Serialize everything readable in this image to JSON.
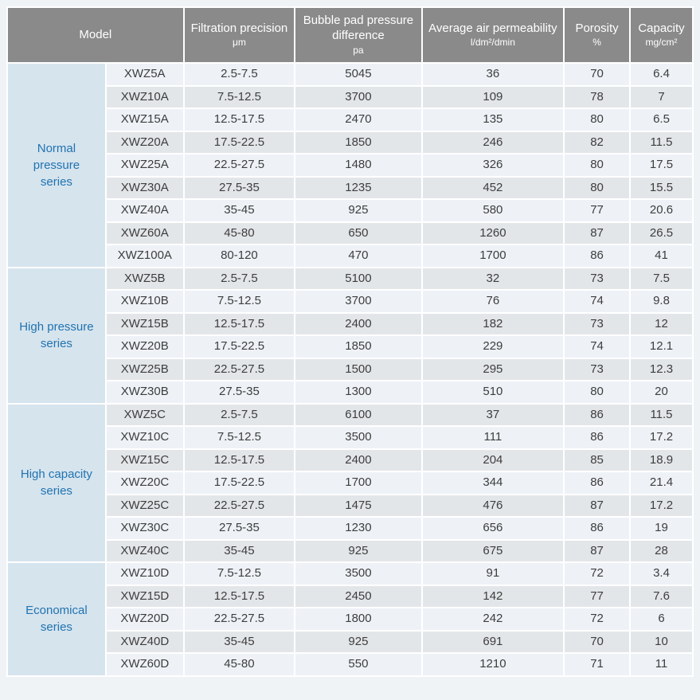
{
  "table": {
    "headers": [
      {
        "title": "Model",
        "unit": ""
      },
      {
        "title": "Filtration precision",
        "unit": "μm"
      },
      {
        "title": "Bubble pad pressure difference",
        "unit": "pa"
      },
      {
        "title": "Average air permeability",
        "unit": "l/dm²/dmin"
      },
      {
        "title": "Porosity",
        "unit": "%"
      },
      {
        "title": "Capacity",
        "unit": "mg/cm²"
      }
    ],
    "groups": [
      {
        "label": "Normal pressure series",
        "rows": [
          [
            "XWZ5A",
            "2.5-7.5",
            "5045",
            "36",
            "70",
            "6.4"
          ],
          [
            "XWZ10A",
            "7.5-12.5",
            "3700",
            "109",
            "78",
            "7"
          ],
          [
            "XWZ15A",
            "12.5-17.5",
            "2470",
            "135",
            "80",
            "6.5"
          ],
          [
            "XWZ20A",
            "17.5-22.5",
            "1850",
            "246",
            "82",
            "11.5"
          ],
          [
            "XWZ25A",
            "22.5-27.5",
            "1480",
            "326",
            "80",
            "17.5"
          ],
          [
            "XWZ30A",
            "27.5-35",
            "1235",
            "452",
            "80",
            "15.5"
          ],
          [
            "XWZ40A",
            "35-45",
            "925",
            "580",
            "77",
            "20.6"
          ],
          [
            "XWZ60A",
            "45-80",
            "650",
            "1260",
            "87",
            "26.5"
          ],
          [
            "XWZ100A",
            "80-120",
            "470",
            "1700",
            "86",
            "41"
          ]
        ]
      },
      {
        "label": "High pressure series",
        "rows": [
          [
            "XWZ5B",
            "2.5-7.5",
            "5100",
            "32",
            "73",
            "7.5"
          ],
          [
            "XWZ10B",
            "7.5-12.5",
            "3700",
            "76",
            "74",
            "9.8"
          ],
          [
            "XWZ15B",
            "12.5-17.5",
            "2400",
            "182",
            "73",
            "12"
          ],
          [
            "XWZ20B",
            "17.5-22.5",
            "1850",
            "229",
            "74",
            "12.1"
          ],
          [
            "XWZ25B",
            "22.5-27.5",
            "1500",
            "295",
            "73",
            "12.3"
          ],
          [
            "XWZ30B",
            "27.5-35",
            "1300",
            "510",
            "80",
            "20"
          ]
        ]
      },
      {
        "label": "High capacity series",
        "rows": [
          [
            "XWZ5C",
            "2.5-7.5",
            "6100",
            "37",
            "86",
            "11.5"
          ],
          [
            "XWZ10C",
            "7.5-12.5",
            "3500",
            "111",
            "86",
            "17.2"
          ],
          [
            "XWZ15C",
            "12.5-17.5",
            "2400",
            "204",
            "85",
            "18.9"
          ],
          [
            "XWZ20C",
            "17.5-22.5",
            "1700",
            "344",
            "86",
            "21.4"
          ],
          [
            "XWZ25C",
            "22.5-27.5",
            "1475",
            "476",
            "87",
            "17.2"
          ],
          [
            "XWZ30C",
            "27.5-35",
            "1230",
            "656",
            "86",
            "19"
          ],
          [
            "XWZ40C",
            "35-45",
            "925",
            "675",
            "87",
            "28"
          ]
        ]
      },
      {
        "label": "Economical series",
        "rows": [
          [
            "XWZ10D",
            "7.5-12.5",
            "3500",
            "91",
            "72",
            "3.4"
          ],
          [
            "XWZ15D",
            "12.5-17.5",
            "2450",
            "142",
            "77",
            "7.6"
          ],
          [
            "XWZ20D",
            "22.5-27.5",
            "1800",
            "242",
            "72",
            "6"
          ],
          [
            "XWZ40D",
            "35-45",
            "925",
            "691",
            "70",
            "10"
          ],
          [
            "XWZ60D",
            "45-80",
            "550",
            "1210",
            "71",
            "11"
          ]
        ]
      }
    ]
  },
  "colors": {
    "page_background": "#f0f3f6",
    "header_background": "#8a8a8a",
    "header_text": "#ffffff",
    "series_cell_background": "#d6e4ee",
    "series_text": "#2173b0",
    "row_light": "#eef2f7",
    "row_dark": "#e3e6e9",
    "body_text": "#3d3d3d",
    "grid_gap": "#ffffff"
  }
}
